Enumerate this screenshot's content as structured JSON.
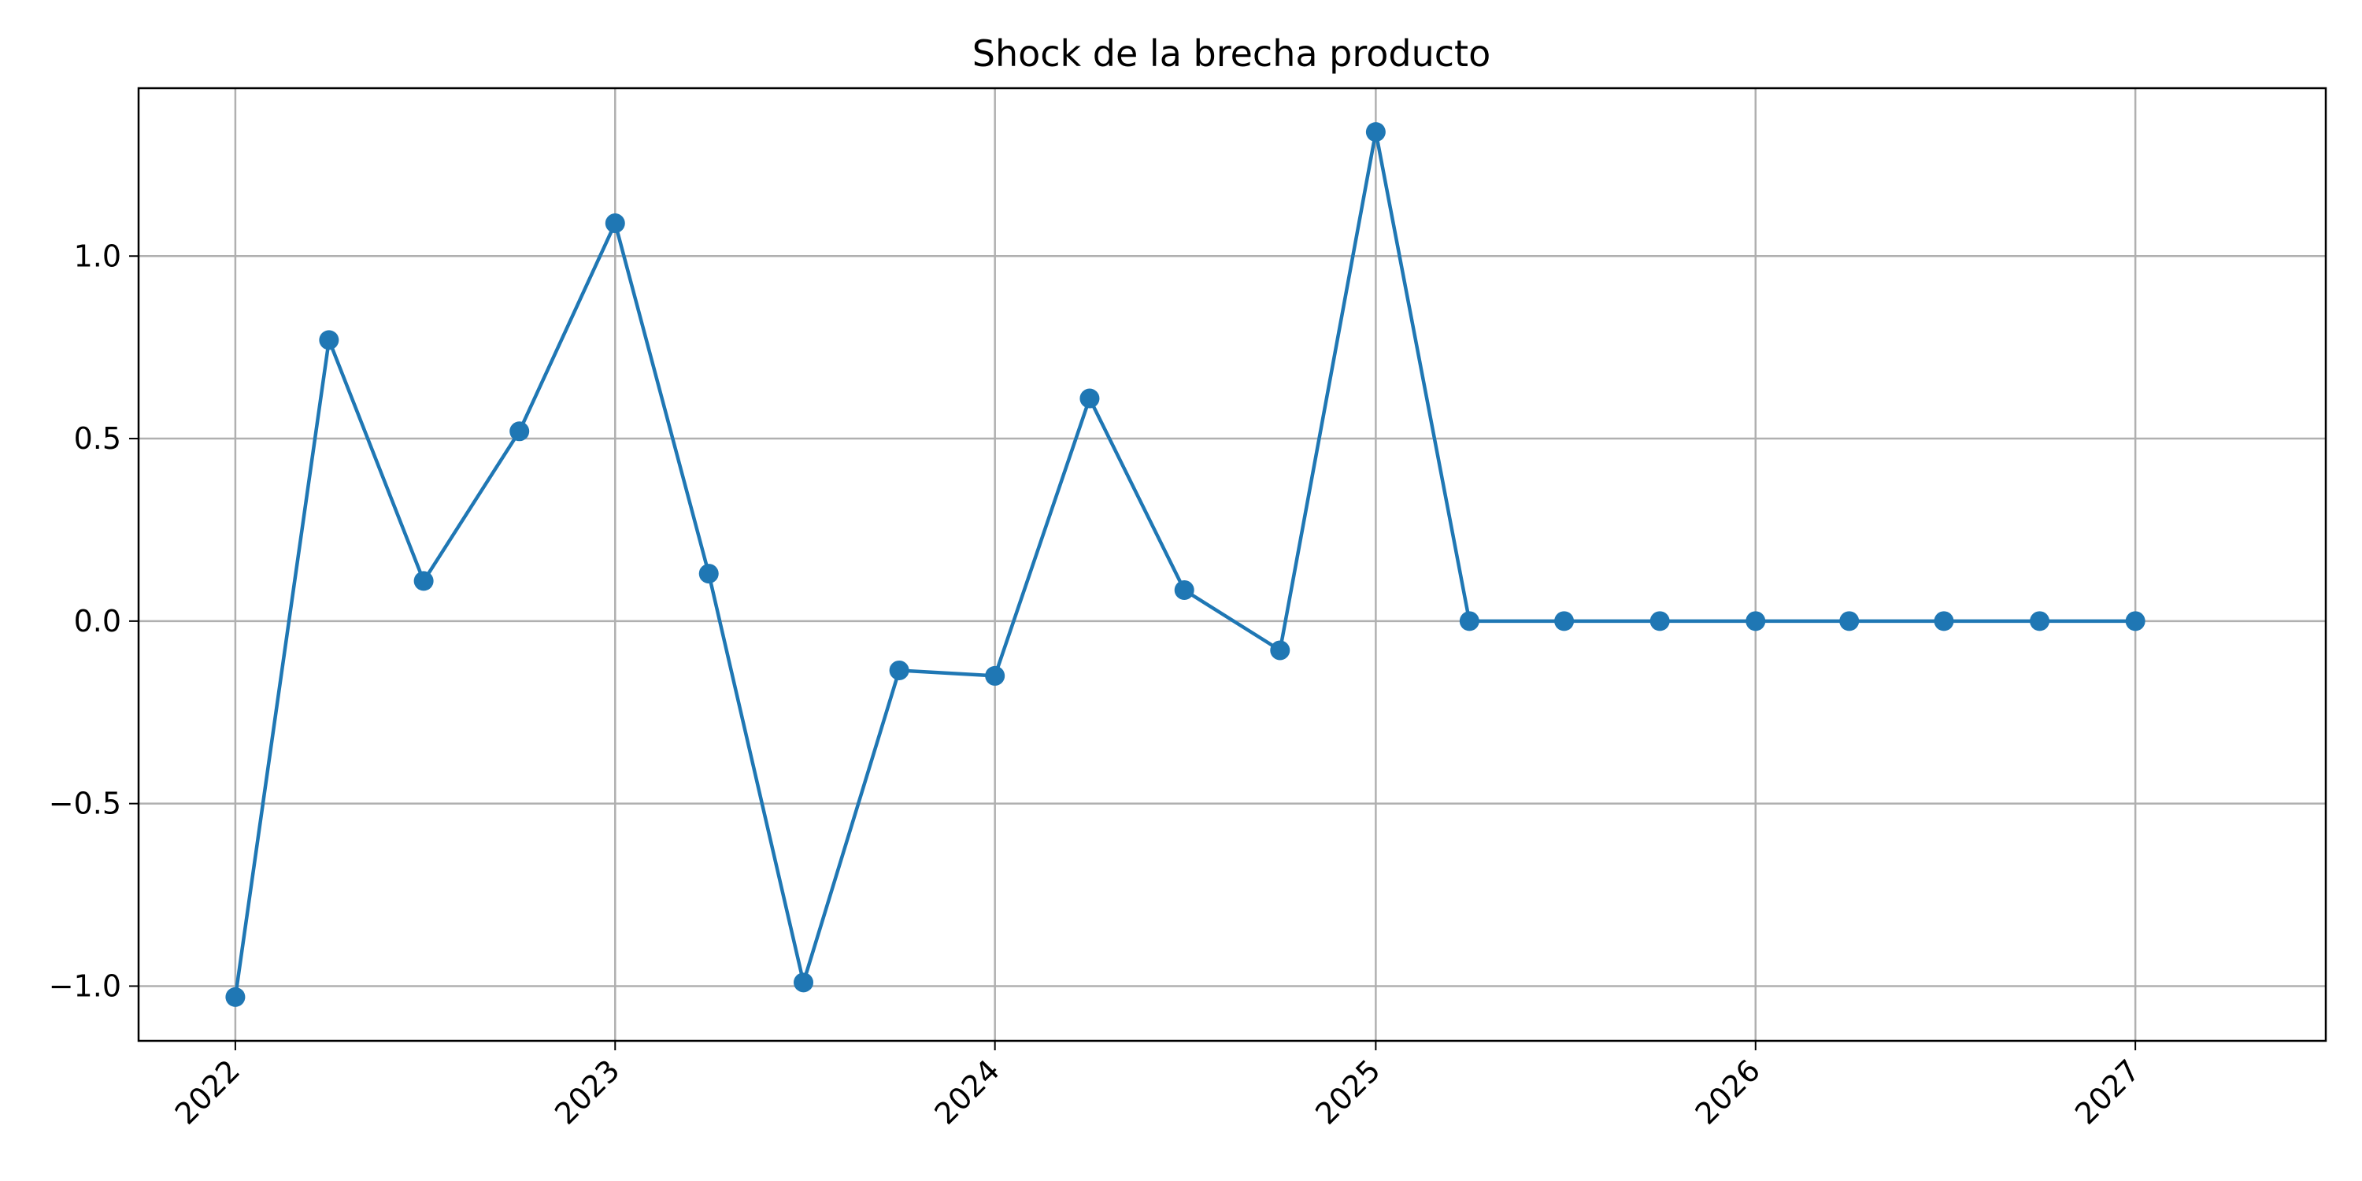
{
  "chart_data": {
    "type": "line",
    "title": "Shock de la brecha producto",
    "xlabel": "",
    "ylabel": "",
    "x": [
      "2022-01-01",
      "2022-04-01",
      "2022-07-01",
      "2022-10-01",
      "2023-01-01",
      "2023-04-01",
      "2023-07-01",
      "2023-10-01",
      "2024-01-01",
      "2024-04-01",
      "2024-07-01",
      "2024-10-01",
      "2025-01-01",
      "2025-04-01",
      "2025-07-01",
      "2025-10-01",
      "2026-01-01",
      "2026-04-01",
      "2026-07-01",
      "2026-10-01",
      "2027-01-01"
    ],
    "series": [
      {
        "name": "",
        "values": [
          -1.03,
          0.77,
          0.11,
          0.52,
          1.09,
          0.13,
          -0.99,
          -0.135,
          -0.15,
          0.61,
          0.085,
          -0.08,
          1.34,
          0.0,
          0.0,
          0.0,
          0.0,
          0.0,
          0.0,
          0.0,
          0.0
        ],
        "color": "#1f77b4",
        "marker": "circle"
      }
    ],
    "xlim": [
      "2021-09-30",
      "2027-07-03"
    ],
    "ylim": [
      -1.15,
      1.46
    ],
    "xticks": [
      "2022",
      "2023",
      "2024",
      "2025",
      "2026",
      "2027"
    ],
    "xtick_dates": [
      "2022-01-01",
      "2023-01-01",
      "2024-01-01",
      "2025-01-01",
      "2026-01-01",
      "2027-01-01"
    ],
    "xtick_rotation": 45,
    "yticks": [
      -1.0,
      -0.5,
      0.0,
      0.5,
      1.0
    ],
    "ytick_labels": [
      "−1.0",
      "−0.5",
      "0.0",
      "0.5",
      "1.0"
    ],
    "grid": true,
    "legend": "none"
  }
}
